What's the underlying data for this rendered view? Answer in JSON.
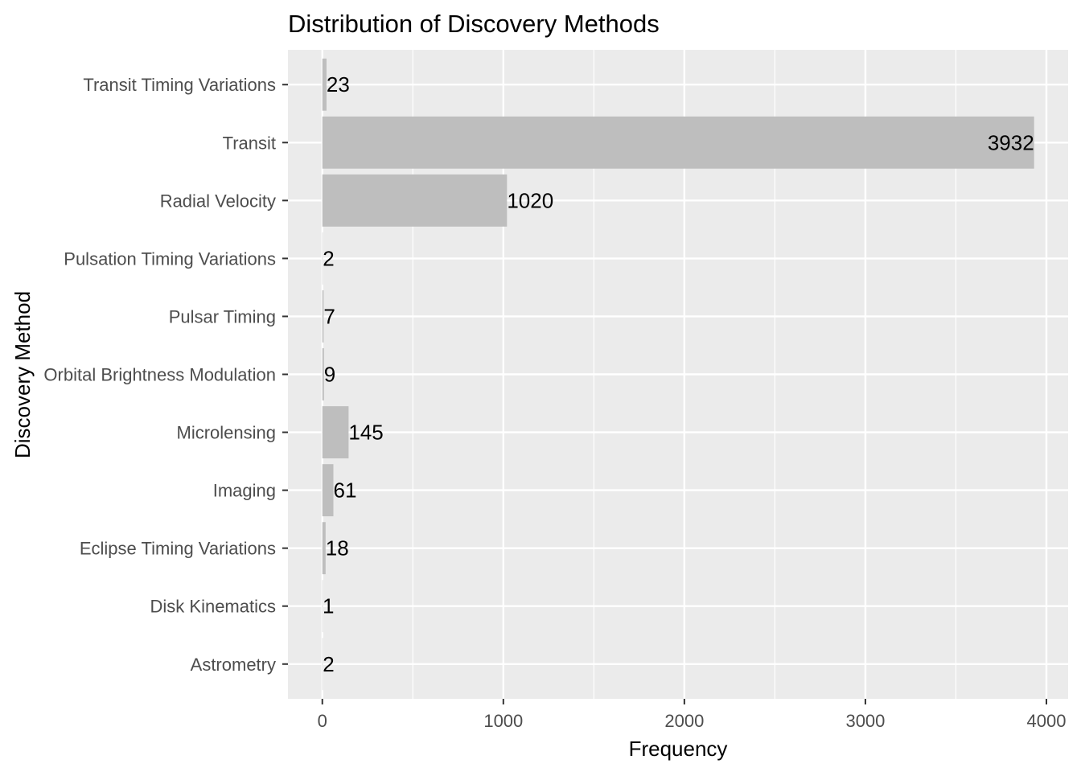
{
  "chart_data": {
    "type": "bar",
    "orientation": "horizontal",
    "title": "Distribution of Discovery Methods",
    "xlabel": "Frequency",
    "ylabel": "Discovery Method",
    "categories": [
      "Astrometry",
      "Disk Kinematics",
      "Eclipse Timing Variations",
      "Imaging",
      "Microlensing",
      "Orbital Brightness Modulation",
      "Pulsar Timing",
      "Pulsation Timing Variations",
      "Radial Velocity",
      "Transit",
      "Transit Timing Variations"
    ],
    "values": [
      2,
      1,
      18,
      61,
      145,
      9,
      7,
      2,
      1020,
      3932,
      23
    ],
    "data_labels": [
      "2",
      "1",
      "18",
      "61",
      "145",
      "9",
      "7",
      "2",
      "1020",
      "3932",
      "23"
    ],
    "xlim": [
      -190,
      4120
    ],
    "x_ticks": [
      0,
      1000,
      2000,
      3000,
      4000
    ],
    "x_tick_labels": [
      "0",
      "1000",
      "2000",
      "3000",
      "4000"
    ],
    "x_minor_ticks": [
      500,
      1500,
      2500,
      3500
    ],
    "grid": true,
    "legend": "none",
    "colors": {
      "panel_background": "#ebebeb",
      "gridline": "#ffffff",
      "bar_fill": "#bebebe",
      "tick_label": "#4d4d4d",
      "tick_mark": "#333333",
      "text": "#000000"
    }
  }
}
